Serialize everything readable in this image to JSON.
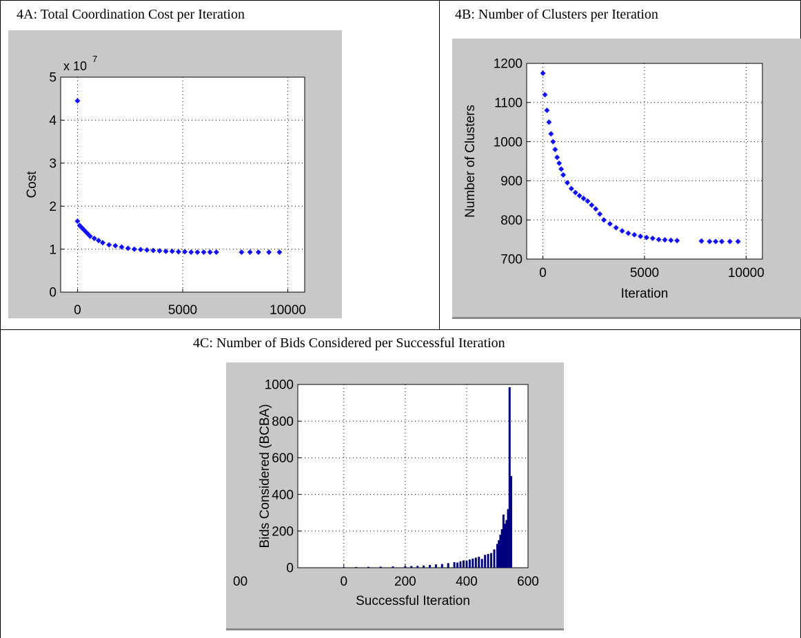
{
  "figure": {
    "captions": {
      "a": "4A:  Total Coordination Cost per Iteration",
      "b": "4B:  Number of Clusters per Iteration",
      "c": "4C:  Number of Bids Considered per Successful Iteration"
    }
  },
  "colors": {
    "panel_bg": "#c8c8c8",
    "plot_bg": "#ffffff",
    "marker": "#1010ff",
    "bar": "#00007f",
    "grid": "#000000"
  },
  "chart_data": [
    {
      "id": "4A",
      "type": "scatter",
      "title": "",
      "xlabel": "Iteration",
      "ylabel": "Cost",
      "y_multiplier": "x 10^7",
      "xlim": [
        -800,
        10800
      ],
      "ylim": [
        0,
        5
      ],
      "xticks": [
        0,
        5000,
        10000
      ],
      "yticks": [
        0,
        1,
        2,
        3,
        4,
        5
      ],
      "grid": true,
      "series": [
        {
          "x": [
            0,
            100,
            200,
            300,
            400,
            500,
            600,
            800,
            1000,
            1200,
            1500,
            1800,
            2100,
            2400,
            2700,
            3000,
            3300,
            3600,
            3900,
            4200,
            4500,
            4800,
            5100,
            5400,
            5700,
            6000,
            6300,
            6600,
            7800,
            8200,
            8600,
            9100,
            9600,
            0
          ],
          "y": [
            1.65,
            1.55,
            1.5,
            1.45,
            1.4,
            1.35,
            1.3,
            1.25,
            1.2,
            1.15,
            1.1,
            1.08,
            1.05,
            1.02,
            1.0,
            0.99,
            0.98,
            0.97,
            0.96,
            0.95,
            0.95,
            0.94,
            0.94,
            0.93,
            0.93,
            0.93,
            0.93,
            0.93,
            0.93,
            0.93,
            0.93,
            0.93,
            0.93,
            4.45
          ]
        }
      ]
    },
    {
      "id": "4B",
      "type": "scatter",
      "title": "",
      "xlabel": "Iteration",
      "ylabel": "Number of Clusters",
      "xlim": [
        -800,
        10800
      ],
      "ylim": [
        700,
        1200
      ],
      "xticks": [
        0,
        5000,
        10000
      ],
      "yticks": [
        700,
        800,
        900,
        1000,
        1100,
        1200
      ],
      "grid": true,
      "series": [
        {
          "x": [
            0,
            100,
            200,
            300,
            400,
            500,
            600,
            700,
            800,
            900,
            1000,
            1200,
            1400,
            1600,
            1800,
            2000,
            2200,
            2400,
            2600,
            2800,
            3000,
            3300,
            3600,
            3900,
            4200,
            4500,
            4800,
            5100,
            5400,
            5700,
            6000,
            6300,
            6600,
            7800,
            8200,
            8500,
            8800,
            9200,
            9600
          ],
          "y": [
            1175,
            1120,
            1080,
            1050,
            1020,
            1000,
            980,
            960,
            945,
            930,
            915,
            895,
            880,
            870,
            862,
            855,
            848,
            838,
            828,
            815,
            800,
            790,
            780,
            772,
            766,
            762,
            758,
            755,
            753,
            750,
            749,
            748,
            747,
            746,
            745,
            745,
            745,
            745,
            745
          ]
        }
      ]
    },
    {
      "id": "4C",
      "type": "bar",
      "title": "",
      "xlabel": "Successful Iteration",
      "ylabel": "Bids Considered (BCBA)",
      "xlim": [
        -150,
        600
      ],
      "ylim": [
        0,
        1000
      ],
      "xticks": [
        0,
        200,
        400,
        600
      ],
      "xticks_extra": [
        "00"
      ],
      "yticks": [
        0,
        200,
        400,
        600,
        800,
        1000
      ],
      "grid": true,
      "bars": {
        "x": [
          0,
          40,
          80,
          120,
          160,
          200,
          220,
          240,
          260,
          280,
          300,
          320,
          340,
          360,
          370,
          380,
          390,
          400,
          410,
          420,
          430,
          440,
          450,
          460,
          470,
          480,
          490,
          500,
          505,
          510,
          515,
          520,
          525,
          530,
          535,
          540,
          545
        ],
        "y": [
          3,
          4,
          5,
          6,
          7,
          8,
          9,
          10,
          12,
          15,
          18,
          20,
          25,
          30,
          28,
          35,
          40,
          38,
          45,
          50,
          55,
          60,
          48,
          70,
          75,
          80,
          100,
          130,
          150,
          180,
          210,
          290,
          240,
          260,
          320,
          985,
          500
        ]
      }
    }
  ]
}
